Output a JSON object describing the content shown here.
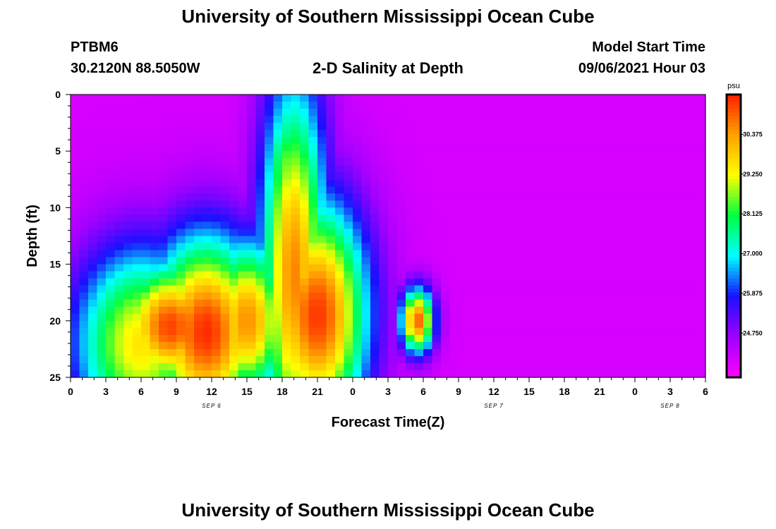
{
  "header": {
    "title": "University of Southern Mississippi Ocean Cube",
    "station_id": "PTBM6",
    "station_coords": "30.2120N  88.5050W",
    "chart_title": "2-D Salinity at Depth",
    "model_start_label": "Model Start Time",
    "model_start_value": "09/06/2021 Hour 03"
  },
  "footer": {
    "title": "University of Southern Mississippi Ocean Cube"
  },
  "chart_data": {
    "type": "heatmap",
    "title": "2-D Salinity at Depth",
    "xlabel": "Forecast Time(Z)",
    "ylabel": "Depth (ft)",
    "x_tick_labels": [
      "0",
      "3",
      "6",
      "9",
      "12",
      "15",
      "18",
      "21",
      "0",
      "3",
      "6",
      "9",
      "12",
      "15",
      "18",
      "21",
      "0",
      "3",
      "6"
    ],
    "x_date_labels": [
      "SEP 6",
      "SEP 7",
      "SEP 8"
    ],
    "xlim_hours": [
      0,
      54
    ],
    "ylim": [
      0,
      25
    ],
    "y_ticks": [
      0,
      5,
      10,
      15,
      20,
      25
    ],
    "y_inverted": true,
    "colorbar": {
      "unit": "psu",
      "ticks": [
        "30.375",
        "29.250",
        "28.125",
        "27.000",
        "25.875",
        "24.750"
      ],
      "range": [
        23.5,
        31.5
      ],
      "colors": [
        "#ff00ff",
        "#a000ff",
        "#1a10ff",
        "#00ffff",
        "#00ff40",
        "#ffff00",
        "#ffa000",
        "#ff2000"
      ]
    },
    "z_min": 24.0,
    "features": [
      {
        "hour": 8.5,
        "depth": 20.5,
        "peak": 31.2,
        "sigma_h": 3.2,
        "sigma_d": 4.0
      },
      {
        "hour": 19.0,
        "depth": 16.0,
        "peak": 30.6,
        "sigma_h": 2.0,
        "sigma_d": 12.0
      },
      {
        "hour": 11.5,
        "depth": 21.0,
        "peak": 31.4,
        "sigma_h": 3.5,
        "sigma_d": 6.0
      },
      {
        "hour": 21.0,
        "depth": 19.5,
        "peak": 31.3,
        "sigma_h": 3.0,
        "sigma_d": 7.0
      },
      {
        "hour": 15.0,
        "depth": 20.0,
        "peak": 30.5,
        "sigma_h": 2.5,
        "sigma_d": 5.0
      },
      {
        "hour": 18.5,
        "depth": 8.0,
        "peak": 28.8,
        "sigma_h": 1.5,
        "sigma_d": 6.0
      },
      {
        "hour": 6.0,
        "depth": 22.0,
        "peak": 29.5,
        "sigma_h": 4.0,
        "sigma_d": 6.0
      },
      {
        "hour": 29.5,
        "depth": 20.0,
        "peak": 30.9,
        "sigma_h": 1.0,
        "sigma_d": 2.0
      }
    ]
  }
}
